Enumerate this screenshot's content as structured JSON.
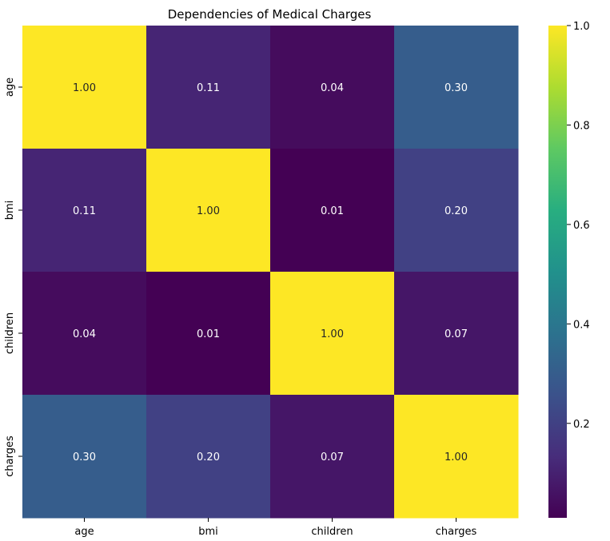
{
  "chart_data": {
    "type": "heatmap",
    "title": "Dependencies of Medical Charges",
    "xlabel": "",
    "ylabel": "",
    "x_categories": [
      "age",
      "bmi",
      "children",
      "charges"
    ],
    "y_categories": [
      "age",
      "bmi",
      "children",
      "charges"
    ],
    "values": [
      [
        1.0,
        0.11,
        0.04,
        0.3
      ],
      [
        0.11,
        1.0,
        0.01,
        0.2
      ],
      [
        0.04,
        0.01,
        1.0,
        0.07
      ],
      [
        0.3,
        0.2,
        0.07,
        1.0
      ]
    ],
    "annotation_format": "0.00",
    "colormap": "viridis",
    "color_range": [
      0.01,
      1.0
    ],
    "colorbar": {
      "ticks": [
        0.2,
        0.4,
        0.6,
        0.8,
        1.0
      ],
      "tick_labels": [
        "0.2",
        "0.4",
        "0.6",
        "0.8",
        "1.0"
      ]
    },
    "grid": false
  }
}
